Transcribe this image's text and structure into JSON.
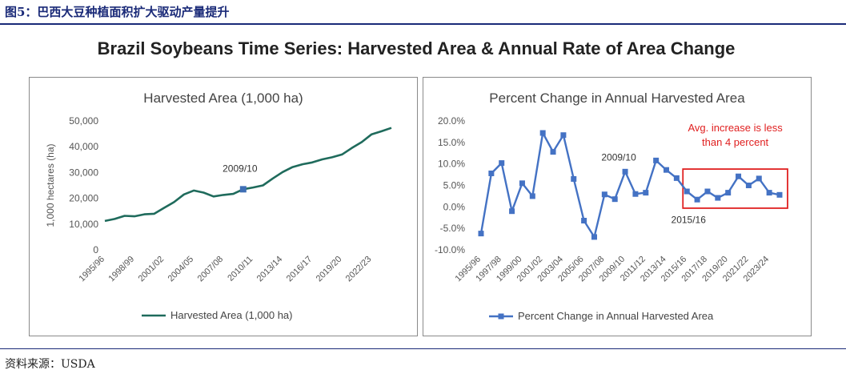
{
  "header": {
    "figure_title": "图5：巴西大豆种植面积扩大驱动产量提升",
    "main_title": "Brazil Soybeans Time Series:  Harvested Area & Annual Rate of Area Change"
  },
  "footer": {
    "source": "资料来源：USDA"
  },
  "colors": {
    "area_line": "#1f6b5c",
    "pct_line": "#4472c4",
    "highlight": "#e02020",
    "navy": "#1a2a78"
  },
  "chart_data": [
    {
      "type": "line",
      "title": "Harvested Area (1,000 ha)",
      "ylabel": "1,000 hectares (ha)",
      "xlabel": "",
      "x": [
        "1995/96",
        "1996/97",
        "1997/98",
        "1998/99",
        "1999/00",
        "2000/01",
        "2001/02",
        "2002/03",
        "2003/04",
        "2004/05",
        "2005/06",
        "2006/07",
        "2007/08",
        "2008/09",
        "2009/10",
        "2010/11",
        "2011/12",
        "2012/13",
        "2013/14",
        "2014/15",
        "2015/16",
        "2016/17",
        "2017/18",
        "2018/19",
        "2019/20",
        "2020/21",
        "2021/22",
        "2022/23",
        "2023/24",
        "2024/25"
      ],
      "x_tick_labels": [
        "1995/96",
        "1998/99",
        "2001/02",
        "2004/05",
        "2007/08",
        "2010/11",
        "2013/14",
        "2016/17",
        "2019/20",
        "2022/23"
      ],
      "series": [
        {
          "name": "Harvested Area (1,000 ha)",
          "values": [
            11200,
            12000,
            13200,
            13000,
            13800,
            14000,
            16300,
            18500,
            21500,
            23000,
            22200,
            20700,
            21300,
            21700,
            23500,
            24200,
            25000,
            27700,
            30200,
            32100,
            33200,
            33900,
            35100,
            35900,
            37000,
            39500,
            41800,
            44800,
            46000,
            47300
          ]
        }
      ],
      "ylim": [
        0,
        50000
      ],
      "y_tick_labels": [
        "0",
        "10,000",
        "20,000",
        "30,000",
        "40,000",
        "50,000"
      ],
      "annotations": [
        {
          "text": "2009/10",
          "x": "2009/10",
          "y": 23500
        }
      ],
      "legend": {
        "position": "bottom",
        "label": "Harvested Area (1,000 ha)"
      },
      "grid": false
    },
    {
      "type": "line",
      "title": "Percent Change in Annual Harvested Area",
      "xlabel": "",
      "ylabel": "",
      "x": [
        "1995/96",
        "1996/97",
        "1997/98",
        "1998/99",
        "1999/00",
        "2000/01",
        "2001/02",
        "2002/03",
        "2003/04",
        "2004/05",
        "2005/06",
        "2006/07",
        "2007/08",
        "2008/09",
        "2009/10",
        "2010/11",
        "2011/12",
        "2012/13",
        "2013/14",
        "2014/15",
        "2015/16",
        "2016/17",
        "2017/18",
        "2018/19",
        "2019/20",
        "2020/21",
        "2021/22",
        "2022/23",
        "2023/24",
        "2024/25"
      ],
      "x_tick_labels": [
        "1995/96",
        "1997/98",
        "1999/00",
        "2001/02",
        "2003/04",
        "2005/06",
        "2007/08",
        "2009/10",
        "2011/12",
        "2013/14",
        "2015/16",
        "2017/18",
        "2019/20",
        "2021/22",
        "2023/24"
      ],
      "series": [
        {
          "name": "Percent Change in Annual Harvested Area",
          "values": [
            -6.2,
            7.8,
            10.2,
            -1.0,
            5.5,
            2.5,
            17.2,
            12.8,
            16.7,
            6.5,
            -3.2,
            -7.0,
            2.9,
            1.8,
            8.2,
            3.0,
            3.3,
            10.8,
            8.6,
            6.7,
            3.6,
            1.7,
            3.6,
            2.1,
            3.3,
            7.1,
            5.0,
            6.6,
            3.3,
            2.8
          ]
        }
      ],
      "ylim": [
        -10,
        20
      ],
      "y_tick_labels": [
        "-10.0%",
        "-5.0%",
        "0.0%",
        "5.0%",
        "10.0%",
        "15.0%",
        "20.0%"
      ],
      "annotations": [
        {
          "text": "2009/10",
          "x": "2009/10",
          "y": 8.2
        },
        {
          "text": "2015/16",
          "x": "2015/16",
          "y": 3.6
        },
        {
          "text": "Avg. increase is less than 4 percent",
          "lines": [
            "Avg. increase is less",
            "than 4 percent"
          ]
        }
      ],
      "highlight_box": {
        "from": "2015/16",
        "to": "2024/25"
      },
      "legend": {
        "position": "bottom",
        "label": "Percent Change in Annual Harvested Area"
      },
      "grid": false
    }
  ]
}
